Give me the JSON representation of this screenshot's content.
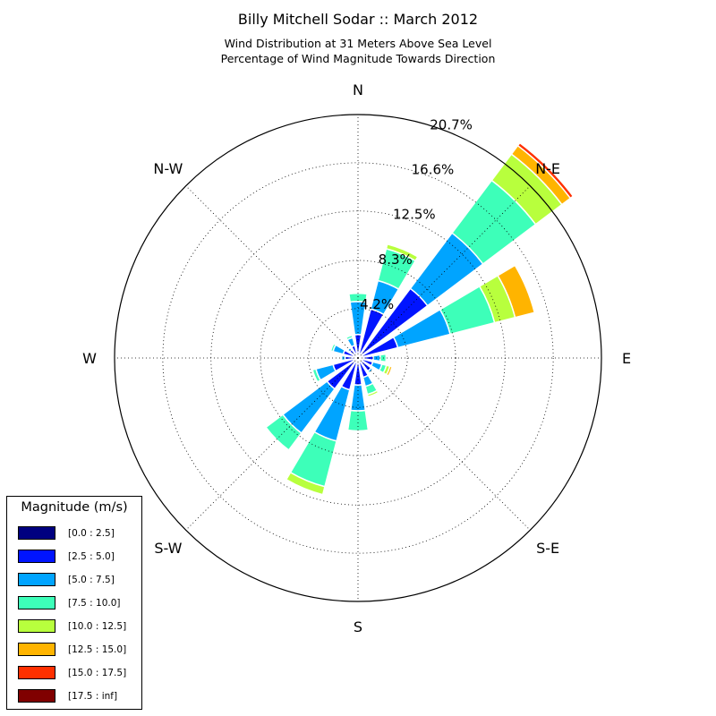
{
  "header": {
    "title": "Billy Mitchell Sodar :: March 2012",
    "subtitle_line1": "Wind Distribution at 31 Meters Above Sea Level",
    "subtitle_line2": "Percentage of Wind Magnitude Towards Direction"
  },
  "chart_data": {
    "type": "windrose",
    "title": "Billy Mitchell Sodar :: March 2012",
    "subtitle": "Wind Distribution at 31 Meters Above Sea Level / Percentage of Wind Magnitude Towards Direction",
    "directions": [
      "N",
      "NNE",
      "NE",
      "ENE",
      "E",
      "ESE",
      "SE",
      "SSE",
      "S",
      "SSW",
      "SW",
      "WSW",
      "W",
      "WNW",
      "NW",
      "NNW"
    ],
    "direction_labels": [
      "N",
      "N-E",
      "E",
      "S-E",
      "S",
      "S-W",
      "W",
      "N-W"
    ],
    "radial_ticks": [
      4.2,
      8.3,
      12.5,
      16.6,
      20.7
    ],
    "radial_tick_labels": [
      "4.2%",
      "8.3%",
      "12.5%",
      "16.6%",
      "20.7%"
    ],
    "rmax": 20.7,
    "grid": true,
    "legend": {
      "title": "Magnitude (m/s)",
      "placement": "bottom-left",
      "entries": [
        "[0.0 : 2.5]",
        "[2.5 : 5.0]",
        "[5.0 : 7.5]",
        "[7.5 : 10.0]",
        "[10.0 : 12.5]",
        "[12.5 : 15.0]",
        "[15.0 : 17.5]",
        "[17.5 : inf]"
      ],
      "colors": [
        "#000080",
        "#0014ff",
        "#00a4ff",
        "#3dffb9",
        "#b8ff3d",
        "#ffb400",
        "#ff3000",
        "#800000"
      ]
    },
    "series": [
      {
        "name": "[0.0 : 2.5]",
        "values": [
          0.3,
          0.3,
          0.4,
          0.3,
          0.3,
          0.3,
          0.3,
          0.3,
          0.4,
          0.3,
          0.3,
          0.3,
          0.3,
          0.3,
          0.3,
          0.3
        ]
      },
      {
        "name": "[2.5 : 5.0]",
        "values": [
          1.7,
          4.0,
          7.0,
          3.2,
          1.0,
          1.0,
          1.1,
          1.4,
          1.9,
          2.5,
          3.0,
          1.9,
          0.8,
          1.0,
          0.6,
          0.8
        ]
      },
      {
        "name": "[5.0 : 7.5]",
        "values": [
          2.8,
          2.5,
          5.9,
          4.6,
          0.6,
          0.8,
          0.2,
          0.8,
          2.2,
          4.5,
          4.7,
          1.5,
          0.3,
          0.9,
          0.2,
          0.7
        ]
      },
      {
        "name": "[7.5 : 10.0]",
        "values": [
          0.7,
          2.8,
          5.6,
          3.9,
          0.5,
          0.4,
          0.1,
          0.7,
          1.7,
          4.0,
          1.8,
          0.3,
          0.1,
          0.2,
          0.0,
          0.2
        ]
      },
      {
        "name": "[10.0 : 12.5]",
        "values": [
          0.0,
          0.4,
          2.8,
          1.8,
          0.1,
          0.3,
          0.0,
          0.2,
          0.0,
          0.7,
          0.0,
          0.0,
          0.0,
          0.0,
          0.0,
          0.0
        ]
      },
      {
        "name": "[12.5 : 15.0]",
        "values": [
          0.0,
          0.0,
          0.9,
          1.7,
          0.0,
          0.2,
          0.0,
          0.0,
          0.0,
          0.0,
          0.0,
          0.0,
          0.0,
          0.0,
          0.0,
          0.0
        ]
      },
      {
        "name": "[15.0 : 17.5]",
        "values": [
          0.0,
          0.0,
          0.3,
          0.0,
          0.0,
          0.0,
          0.0,
          0.0,
          0.0,
          0.0,
          0.0,
          0.0,
          0.0,
          0.0,
          0.0,
          0.0
        ]
      },
      {
        "name": "[17.5 : inf]",
        "values": [
          0.0,
          0.0,
          0.1,
          0.0,
          0.0,
          0.0,
          0.0,
          0.0,
          0.0,
          0.0,
          0.0,
          0.0,
          0.0,
          0.0,
          0.0,
          0.0
        ]
      }
    ]
  }
}
